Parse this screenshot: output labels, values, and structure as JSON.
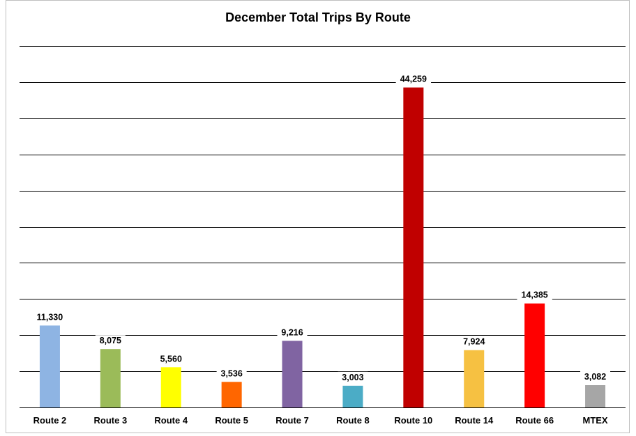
{
  "chart_data": {
    "type": "bar",
    "title": "December Total Trips By Route",
    "xlabel": "",
    "ylabel": "",
    "ylim": [
      0,
      50000
    ],
    "grid": true,
    "categories": [
      "Route 2",
      "Route 3",
      "Route 4",
      "Route 5",
      "Route 7",
      "Route 8",
      "Route 10",
      "Route 14",
      "Route 66",
      "MTEX"
    ],
    "values": [
      11330,
      8075,
      5560,
      3536,
      9216,
      3003,
      44259,
      7924,
      14385,
      3082
    ],
    "value_labels": [
      "11,330",
      "8,075",
      "5,560",
      "3,536",
      "9,216",
      "3,003",
      "44,259",
      "7,924",
      "14,385",
      "3,082"
    ],
    "colors": [
      "#8eb4e3",
      "#9bbb59",
      "#ffff00",
      "#ff6600",
      "#8064a2",
      "#4bacc6",
      "#c00000",
      "#f6c142",
      "#ff0000",
      "#a6a6a6"
    ]
  }
}
